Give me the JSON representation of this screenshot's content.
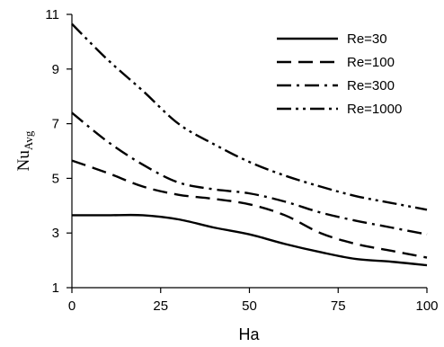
{
  "chart_data": {
    "type": "line",
    "xlabel": "Ha",
    "ylabel_main": "Nu",
    "ylabel_sub": "Avg",
    "xlim": [
      0,
      100
    ],
    "ylim": [
      1,
      11
    ],
    "xticks": [
      0,
      25,
      50,
      75,
      100
    ],
    "yticks": [
      1,
      3,
      5,
      7,
      9,
      11
    ],
    "legend_position": "top-right",
    "grid": false,
    "series": [
      {
        "name": "Re=30",
        "dash": "solid",
        "x": [
          0,
          10,
          20,
          30,
          40,
          50,
          60,
          70,
          80,
          90,
          100
        ],
        "y": [
          3.65,
          3.65,
          3.65,
          3.5,
          3.2,
          2.95,
          2.6,
          2.3,
          2.05,
          1.95,
          1.82
        ]
      },
      {
        "name": "Re=100",
        "dash": "dash",
        "x": [
          0,
          10,
          20,
          30,
          40,
          50,
          60,
          70,
          80,
          90,
          100
        ],
        "y": [
          5.65,
          5.2,
          4.7,
          4.4,
          4.25,
          4.05,
          3.65,
          3.0,
          2.6,
          2.35,
          2.1
        ]
      },
      {
        "name": "Re=300",
        "dash": "dashdot",
        "x": [
          0,
          10,
          20,
          30,
          40,
          50,
          60,
          70,
          80,
          90,
          100
        ],
        "y": [
          7.4,
          6.35,
          5.5,
          4.85,
          4.6,
          4.45,
          4.15,
          3.75,
          3.45,
          3.2,
          2.95
        ]
      },
      {
        "name": "Re=1000",
        "dash": "dashdotdot",
        "x": [
          0,
          10,
          20,
          30,
          40,
          50,
          60,
          70,
          80,
          90,
          100
        ],
        "y": [
          10.65,
          9.35,
          8.2,
          7.0,
          6.25,
          5.6,
          5.1,
          4.7,
          4.35,
          4.1,
          3.85
        ]
      }
    ]
  }
}
